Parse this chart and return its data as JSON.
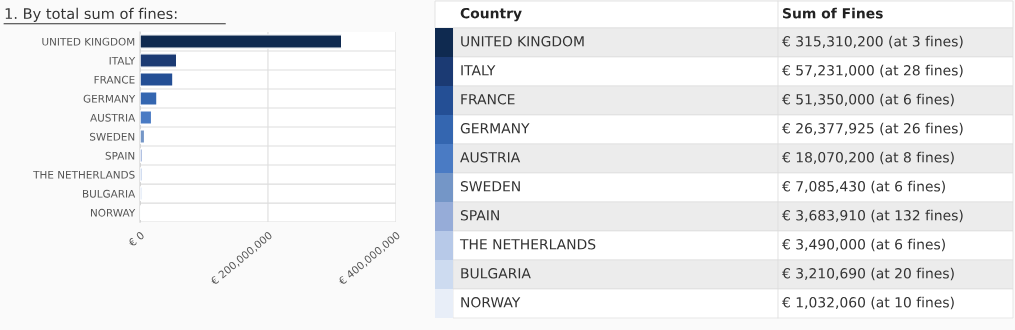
{
  "chart_data": {
    "type": "bar",
    "orientation": "horizontal",
    "title": "1. By total sum of fines:",
    "categories": [
      "UNITED KINGDOM",
      "ITALY",
      "FRANCE",
      "GERMANY",
      "AUSTRIA",
      "SWEDEN",
      "SPAIN",
      "THE NETHERLANDS",
      "BULGARIA",
      "NORWAY"
    ],
    "values": [
      315310200,
      57231000,
      51350000,
      26377925,
      18070200,
      7085430,
      3683910,
      3490000,
      3210690,
      1032060
    ],
    "colors": [
      "#0f2a50",
      "#1b3a73",
      "#244f95",
      "#3466b0",
      "#4a7bc4",
      "#7496c7",
      "#96acd8",
      "#b7c9e8",
      "#cddbf0",
      "#e8eef8"
    ],
    "annotations": [
      "Country",
      "Sum of Fines",
      "€ 315,310,200 (at 3 fines)",
      "€ 57,231,000 (at 28 fines)",
      "€ 51,350,000 (at 6 fines)",
      "€ 26,377,925 (at 26 fines)",
      "€ 18,070,200 (at 8 fines)",
      "€ 7,085,430 (at 6 fines)",
      "€ 3,683,910 (at 132 fines)",
      "€ 3,490,000 (at 6 fines)",
      "€ 3,210,690 (at 20 fines)",
      "€ 1,032,060 (at 10 fines)"
    ],
    "xlim": [
      0,
      400000000
    ],
    "xticks": [
      {
        "value": 0,
        "label": "€ 0"
      },
      {
        "value": 200000000,
        "label": "€ 200,000,000"
      },
      {
        "value": 400000000,
        "label": "€ 400,000,000"
      }
    ],
    "grid": true
  }
}
